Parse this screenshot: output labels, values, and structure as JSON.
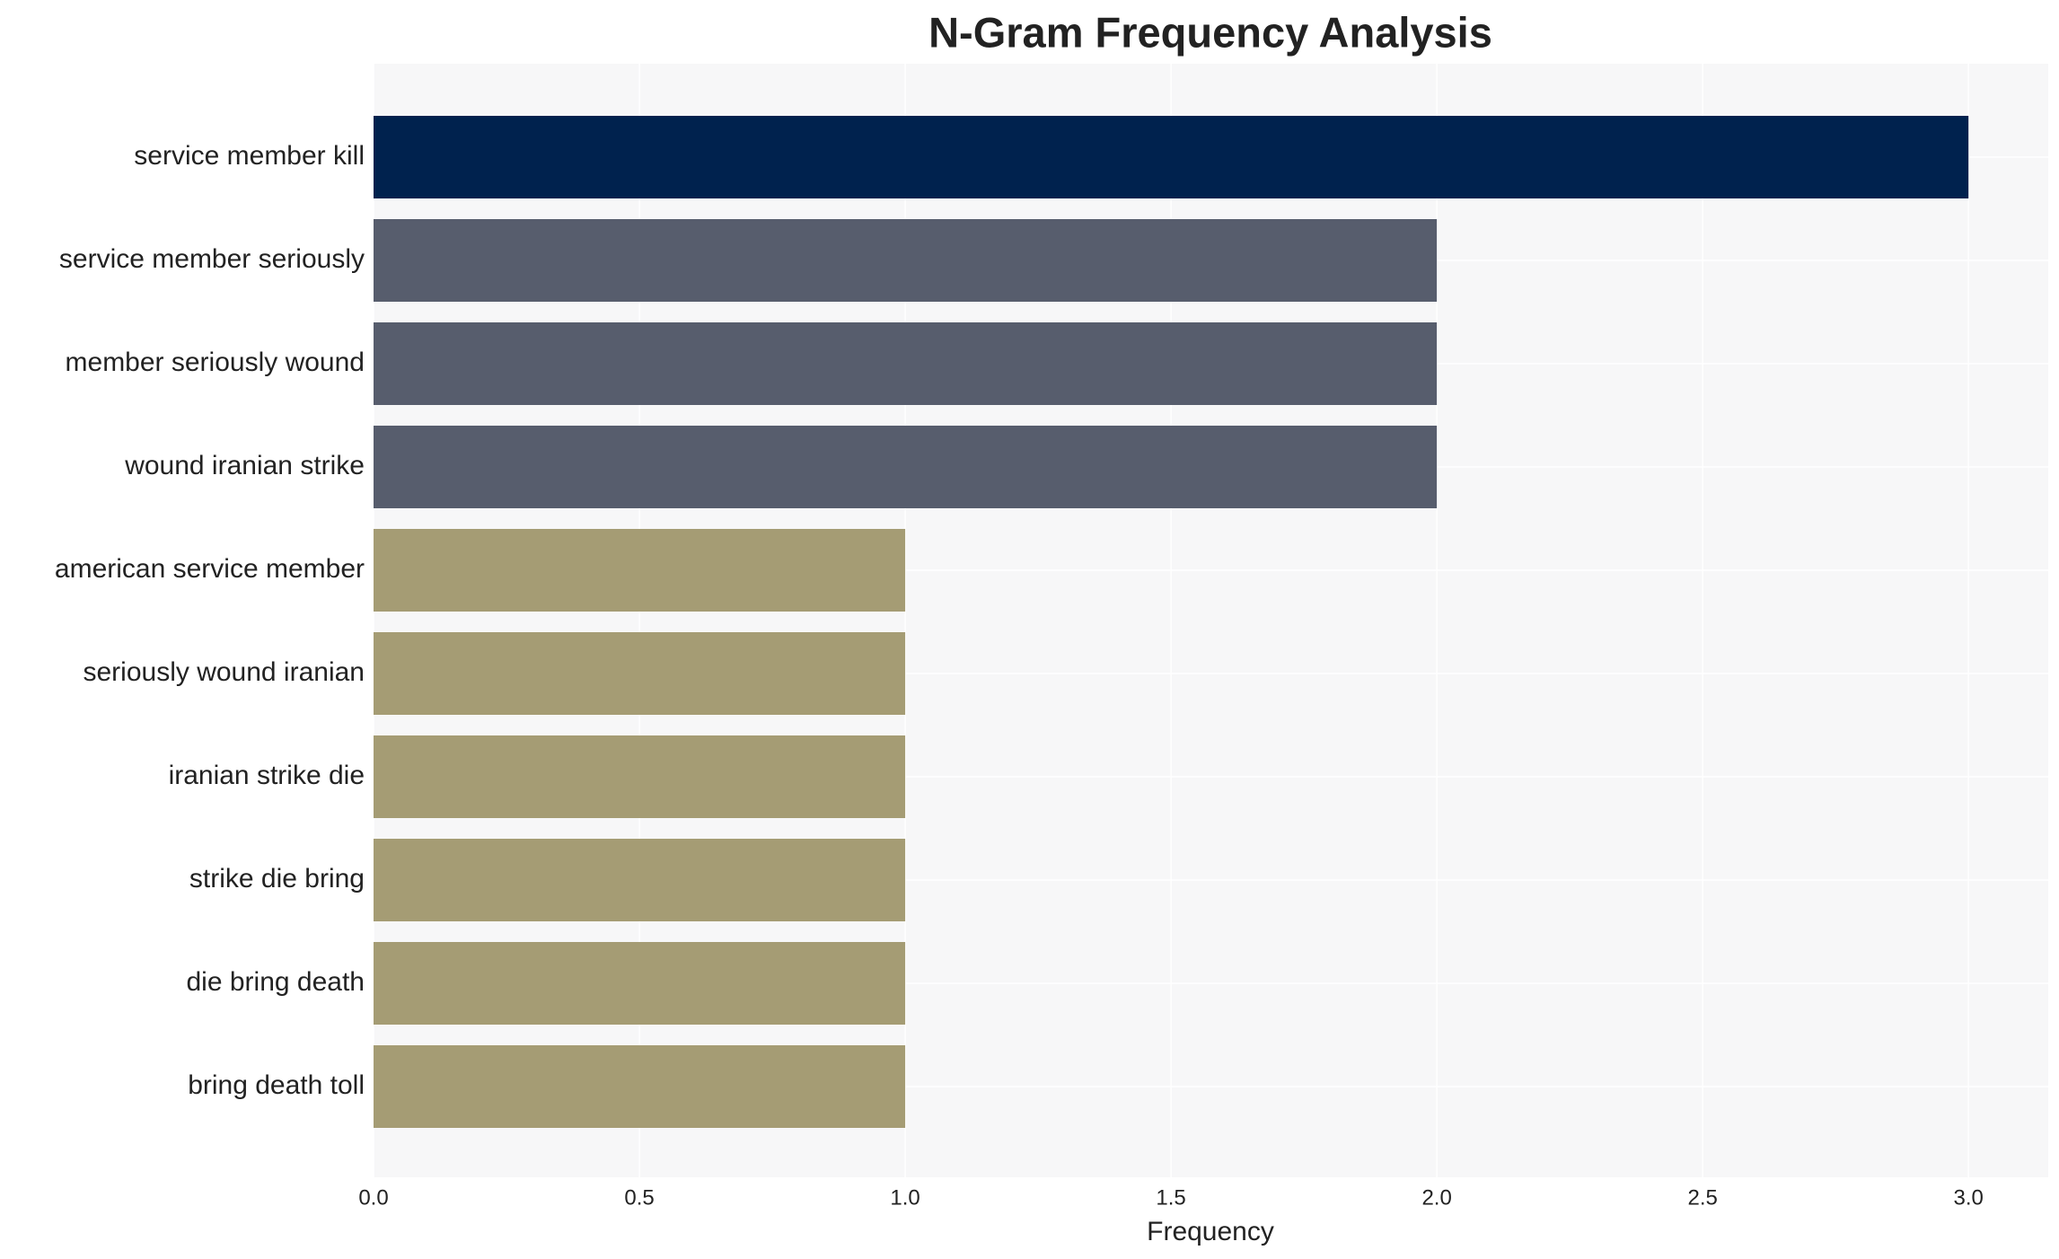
{
  "chart_data": {
    "type": "bar",
    "orientation": "horizontal",
    "title": "N-Gram Frequency Analysis",
    "x_label": "Frequency",
    "categories": [
      "service member kill",
      "service member seriously",
      "member seriously wound",
      "wound iranian strike",
      "american service member",
      "seriously wound iranian",
      "iranian strike die",
      "strike die bring",
      "die bring death",
      "bring death toll"
    ],
    "values": [
      3,
      2,
      2,
      2,
      1,
      1,
      1,
      1,
      1,
      1
    ],
    "colors": [
      "#00224e",
      "#575d6d",
      "#575d6d",
      "#575d6d",
      "#a59c74",
      "#a59c74",
      "#a59c74",
      "#a59c74",
      "#a59c74",
      "#a59c74"
    ],
    "xlim": [
      0,
      3.15
    ],
    "xticks": [
      {
        "value": 0,
        "label": "0.0"
      },
      {
        "value": 0.5,
        "label": "0.5"
      },
      {
        "value": 1,
        "label": "1.0"
      },
      {
        "value": 1.5,
        "label": "1.5"
      },
      {
        "value": 2,
        "label": "2.0"
      },
      {
        "value": 2.5,
        "label": "2.5"
      },
      {
        "value": 3,
        "label": "3.0"
      }
    ],
    "grid": true
  }
}
